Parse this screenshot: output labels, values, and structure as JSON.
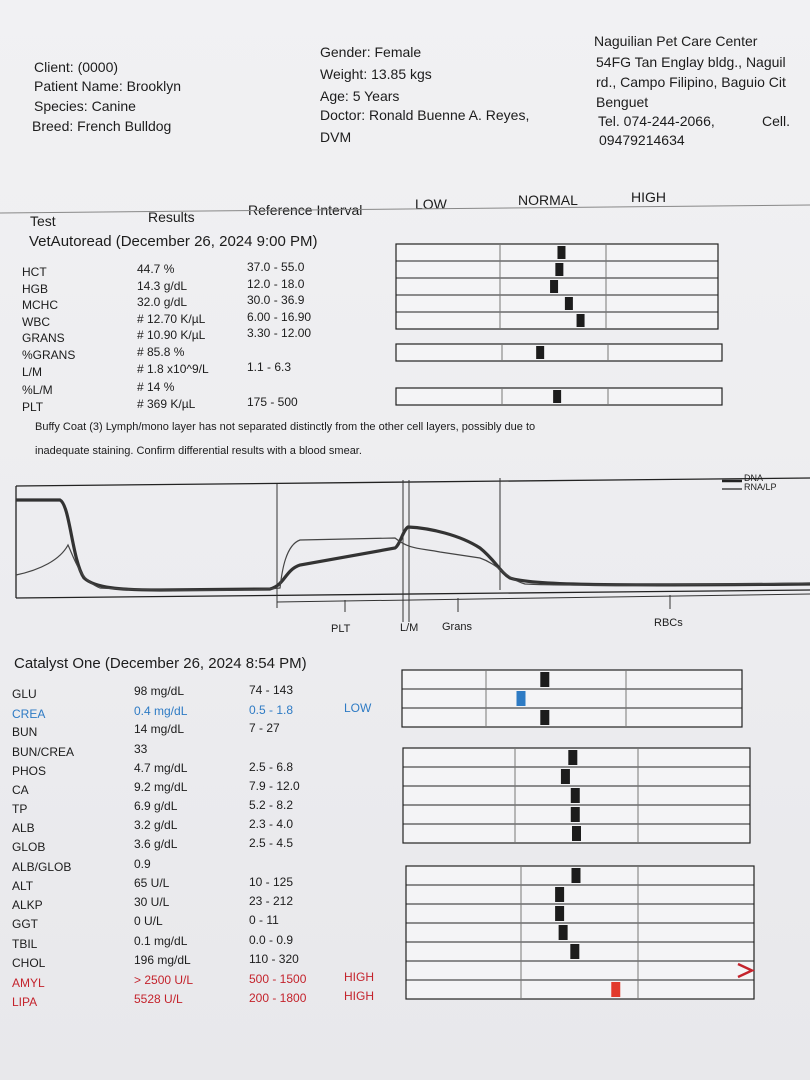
{
  "patient": {
    "client": "Client: (0000)",
    "name": "Patient Name: Brooklyn",
    "species": "Species: Canine",
    "breed": "Breed: French Bulldog",
    "gender": "Gender: Female",
    "weight": "Weight: 13.85 kgs",
    "age": "Age: 5 Years",
    "doctor": "Doctor: Ronald Buenne A. Reyes,",
    "doctor_suffix": "DVM"
  },
  "clinic": {
    "name": "Naguilian Pet Care Center",
    "addr1": "54FG Tan Englay bldg., Naguil",
    "addr2": "rd., Campo Filipino, Baguio Cit",
    "addr3": "Benguet",
    "tel": "Tel. 074-244-2066,",
    "cell_label": "Cell.",
    "cell": "09479214634"
  },
  "columns": {
    "test": "Test",
    "results": "Results",
    "reference": "Reference Interval",
    "low": "LOW",
    "normal": "NORMAL",
    "high": "HIGH"
  },
  "hematology": {
    "title": "VetAutoread (December 26, 2024 9:00 PM)",
    "rows": [
      {
        "test": "HCT",
        "result": "44.7 %",
        "ref": "37.0 - 55.0",
        "pos": 0.58
      },
      {
        "test": "HGB",
        "result": "14.3 g/dL",
        "ref": "12.0 - 18.0",
        "pos": 0.56
      },
      {
        "test": "MCHC",
        "result": "32.0 g/dL",
        "ref": "30.0 - 36.9",
        "pos": 0.51
      },
      {
        "test": "WBC",
        "result": "# 12.70 K/µL",
        "ref": "6.00 - 16.90",
        "pos": 0.65
      },
      {
        "test": "GRANS",
        "result": "# 10.90 K/µL",
        "ref": "3.30 - 12.00",
        "pos": 0.76
      },
      {
        "test": "%GRANS",
        "result": "# 85.8 %",
        "ref": ""
      },
      {
        "test": "L/M",
        "result": "# 1.8 x10^9/L",
        "ref": "1.1 - 6.3",
        "pos": 0.36
      },
      {
        "test": "%L/M",
        "result": "# 14 %",
        "ref": ""
      },
      {
        "test": "PLT",
        "result": "# 369 K/µL",
        "ref": "175 - 500",
        "pos": 0.52
      }
    ],
    "note": [
      "Buffy Coat (3)  Lymph/mono layer has not separated distinctly from the other cell  layers, possibly due to",
      "inadequate staining.  Confirm differential  results with a blood smear."
    ]
  },
  "histogram": {
    "legend": [
      "DNA",
      "RNA/LP"
    ],
    "axis_labels": [
      "PLT",
      "L/M",
      "Grans",
      "RBCs"
    ]
  },
  "chemistry": {
    "title": "Catalyst One (December 26, 2024 8:54 PM)",
    "rows": [
      {
        "test": "GLU",
        "result": "98 mg/dL",
        "ref": "74 - 143",
        "flag": "",
        "pos": 0.42,
        "color": "#1c1c1c"
      },
      {
        "test": "CREA",
        "result": "0.4 mg/dL",
        "ref": "0.5 - 1.8",
        "flag": "LOW",
        "pos": 0.25,
        "color": "#2e7bc4"
      },
      {
        "test": "BUN",
        "result": "14 mg/dL",
        "ref": "7 - 27",
        "flag": "",
        "pos": 0.42,
        "color": "#1c1c1c"
      },
      {
        "test": "BUN/CREA",
        "result": "33",
        "ref": ""
      },
      {
        "test": "PHOS",
        "result": "4.7 mg/dL",
        "ref": "2.5 - 6.8",
        "flag": "",
        "pos": 0.47,
        "color": "#1c1c1c"
      },
      {
        "test": "CA",
        "result": "9.2 mg/dL",
        "ref": "7.9 - 12.0",
        "flag": "",
        "pos": 0.41,
        "color": "#1c1c1c"
      },
      {
        "test": "TP",
        "result": "6.9 g/dL",
        "ref": "5.2 - 8.2",
        "flag": "",
        "pos": 0.49,
        "color": "#1c1c1c"
      },
      {
        "test": "ALB",
        "result": "3.2 g/dL",
        "ref": "2.3 - 4.0",
        "flag": "",
        "pos": 0.49,
        "color": "#1c1c1c"
      },
      {
        "test": "GLOB",
        "result": "3.6 g/dL",
        "ref": "2.5 - 4.5",
        "flag": "",
        "pos": 0.5,
        "color": "#1c1c1c"
      },
      {
        "test": "ALB/GLOB",
        "result": "0.9",
        "ref": ""
      },
      {
        "test": "ALT",
        "result": "65 U/L",
        "ref": "10 - 125",
        "flag": "",
        "pos": 0.47,
        "color": "#1c1c1c"
      },
      {
        "test": "ALKP",
        "result": "30 U/L",
        "ref": "23 - 212",
        "flag": "",
        "pos": 0.33,
        "color": "#1c1c1c"
      },
      {
        "test": "GGT",
        "result": "0 U/L",
        "ref": "0 - 11",
        "flag": "",
        "pos": 0.33,
        "color": "#1c1c1c"
      },
      {
        "test": "TBIL",
        "result": "0.1 mg/dL",
        "ref": "0.0 - 0.9",
        "flag": "",
        "pos": 0.36,
        "color": "#1c1c1c"
      },
      {
        "test": "CHOL",
        "result": "196 mg/dL",
        "ref": "110 - 320",
        "flag": "",
        "pos": 0.46,
        "color": "#1c1c1c"
      },
      {
        "test": "AMYL",
        "result": "> 2500 U/L",
        "ref": "500 - 1500",
        "flag": "HIGH",
        "pos": 1.0,
        "color": "#c4232c",
        "arrow": true
      },
      {
        "test": "LIPA",
        "result": "5528 U/L",
        "ref": "200 - 1800",
        "flag": "HIGH",
        "pos": 0.81,
        "color": "#e23a2c"
      }
    ]
  }
}
